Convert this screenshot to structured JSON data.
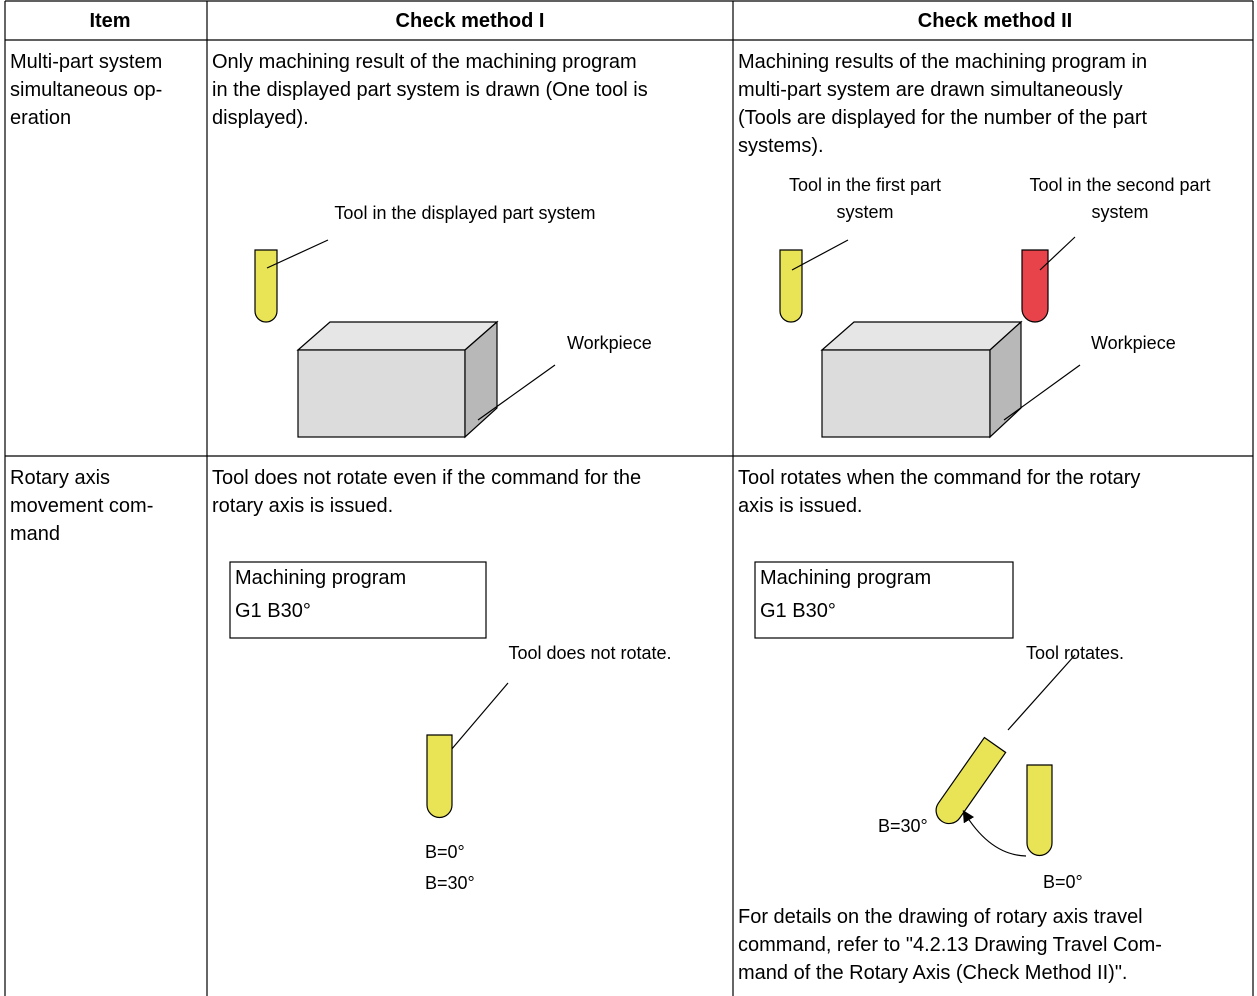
{
  "table": {
    "header": [
      "Item",
      "Check method I",
      "Check method II"
    ],
    "rows": [
      {
        "item": [
          "Multi-part system",
          "simultaneous op-",
          "eration"
        ],
        "method_1": {
          "text": [
            "Only machining result of the machining program",
            "in the displayed part system is drawn (One tool is",
            "displayed)."
          ],
          "figure": {
            "tool_label": "Tool in the displayed part system",
            "workpiece_label": "Workpiece"
          }
        },
        "method_2": {
          "text": [
            "Machining results of the machining program in",
            "multi-part system are drawn simultaneously",
            "(Tools are displayed for the number of the part",
            "systems)."
          ],
          "figure": {
            "first_tool_label": [
              "Tool in the first part",
              "system"
            ],
            "second_tool_label": [
              "Tool in the second part",
              "system"
            ],
            "workpiece_label": "Workpiece"
          }
        }
      },
      {
        "item": [
          "Rotary axis",
          "movement com-",
          "mand"
        ],
        "method_1": {
          "text": [
            "Tool does not rotate even if the command for the",
            "rotary axis is issued."
          ],
          "figure": {
            "program": [
              "Machining program",
              "G1 B30°"
            ],
            "tool_label": "Tool does not rotate.",
            "angle_labels": [
              "B=0°",
              "B=30°"
            ]
          }
        },
        "method_2": {
          "text": [
            "Tool rotates when the command for the rotary",
            "axis is issued."
          ],
          "figure": {
            "program": [
              "Machining program",
              "G1 B30°"
            ],
            "tool_label": "Tool rotates.",
            "rotated_label": "B=30°",
            "original_label": "B=0°"
          },
          "note": [
            "For details on the drawing of rotary axis travel",
            "command, refer to \"4.2.13 Drawing Travel Com-",
            "mand of the Rotary Axis (Check Method II)\"."
          ]
        }
      }
    ]
  }
}
